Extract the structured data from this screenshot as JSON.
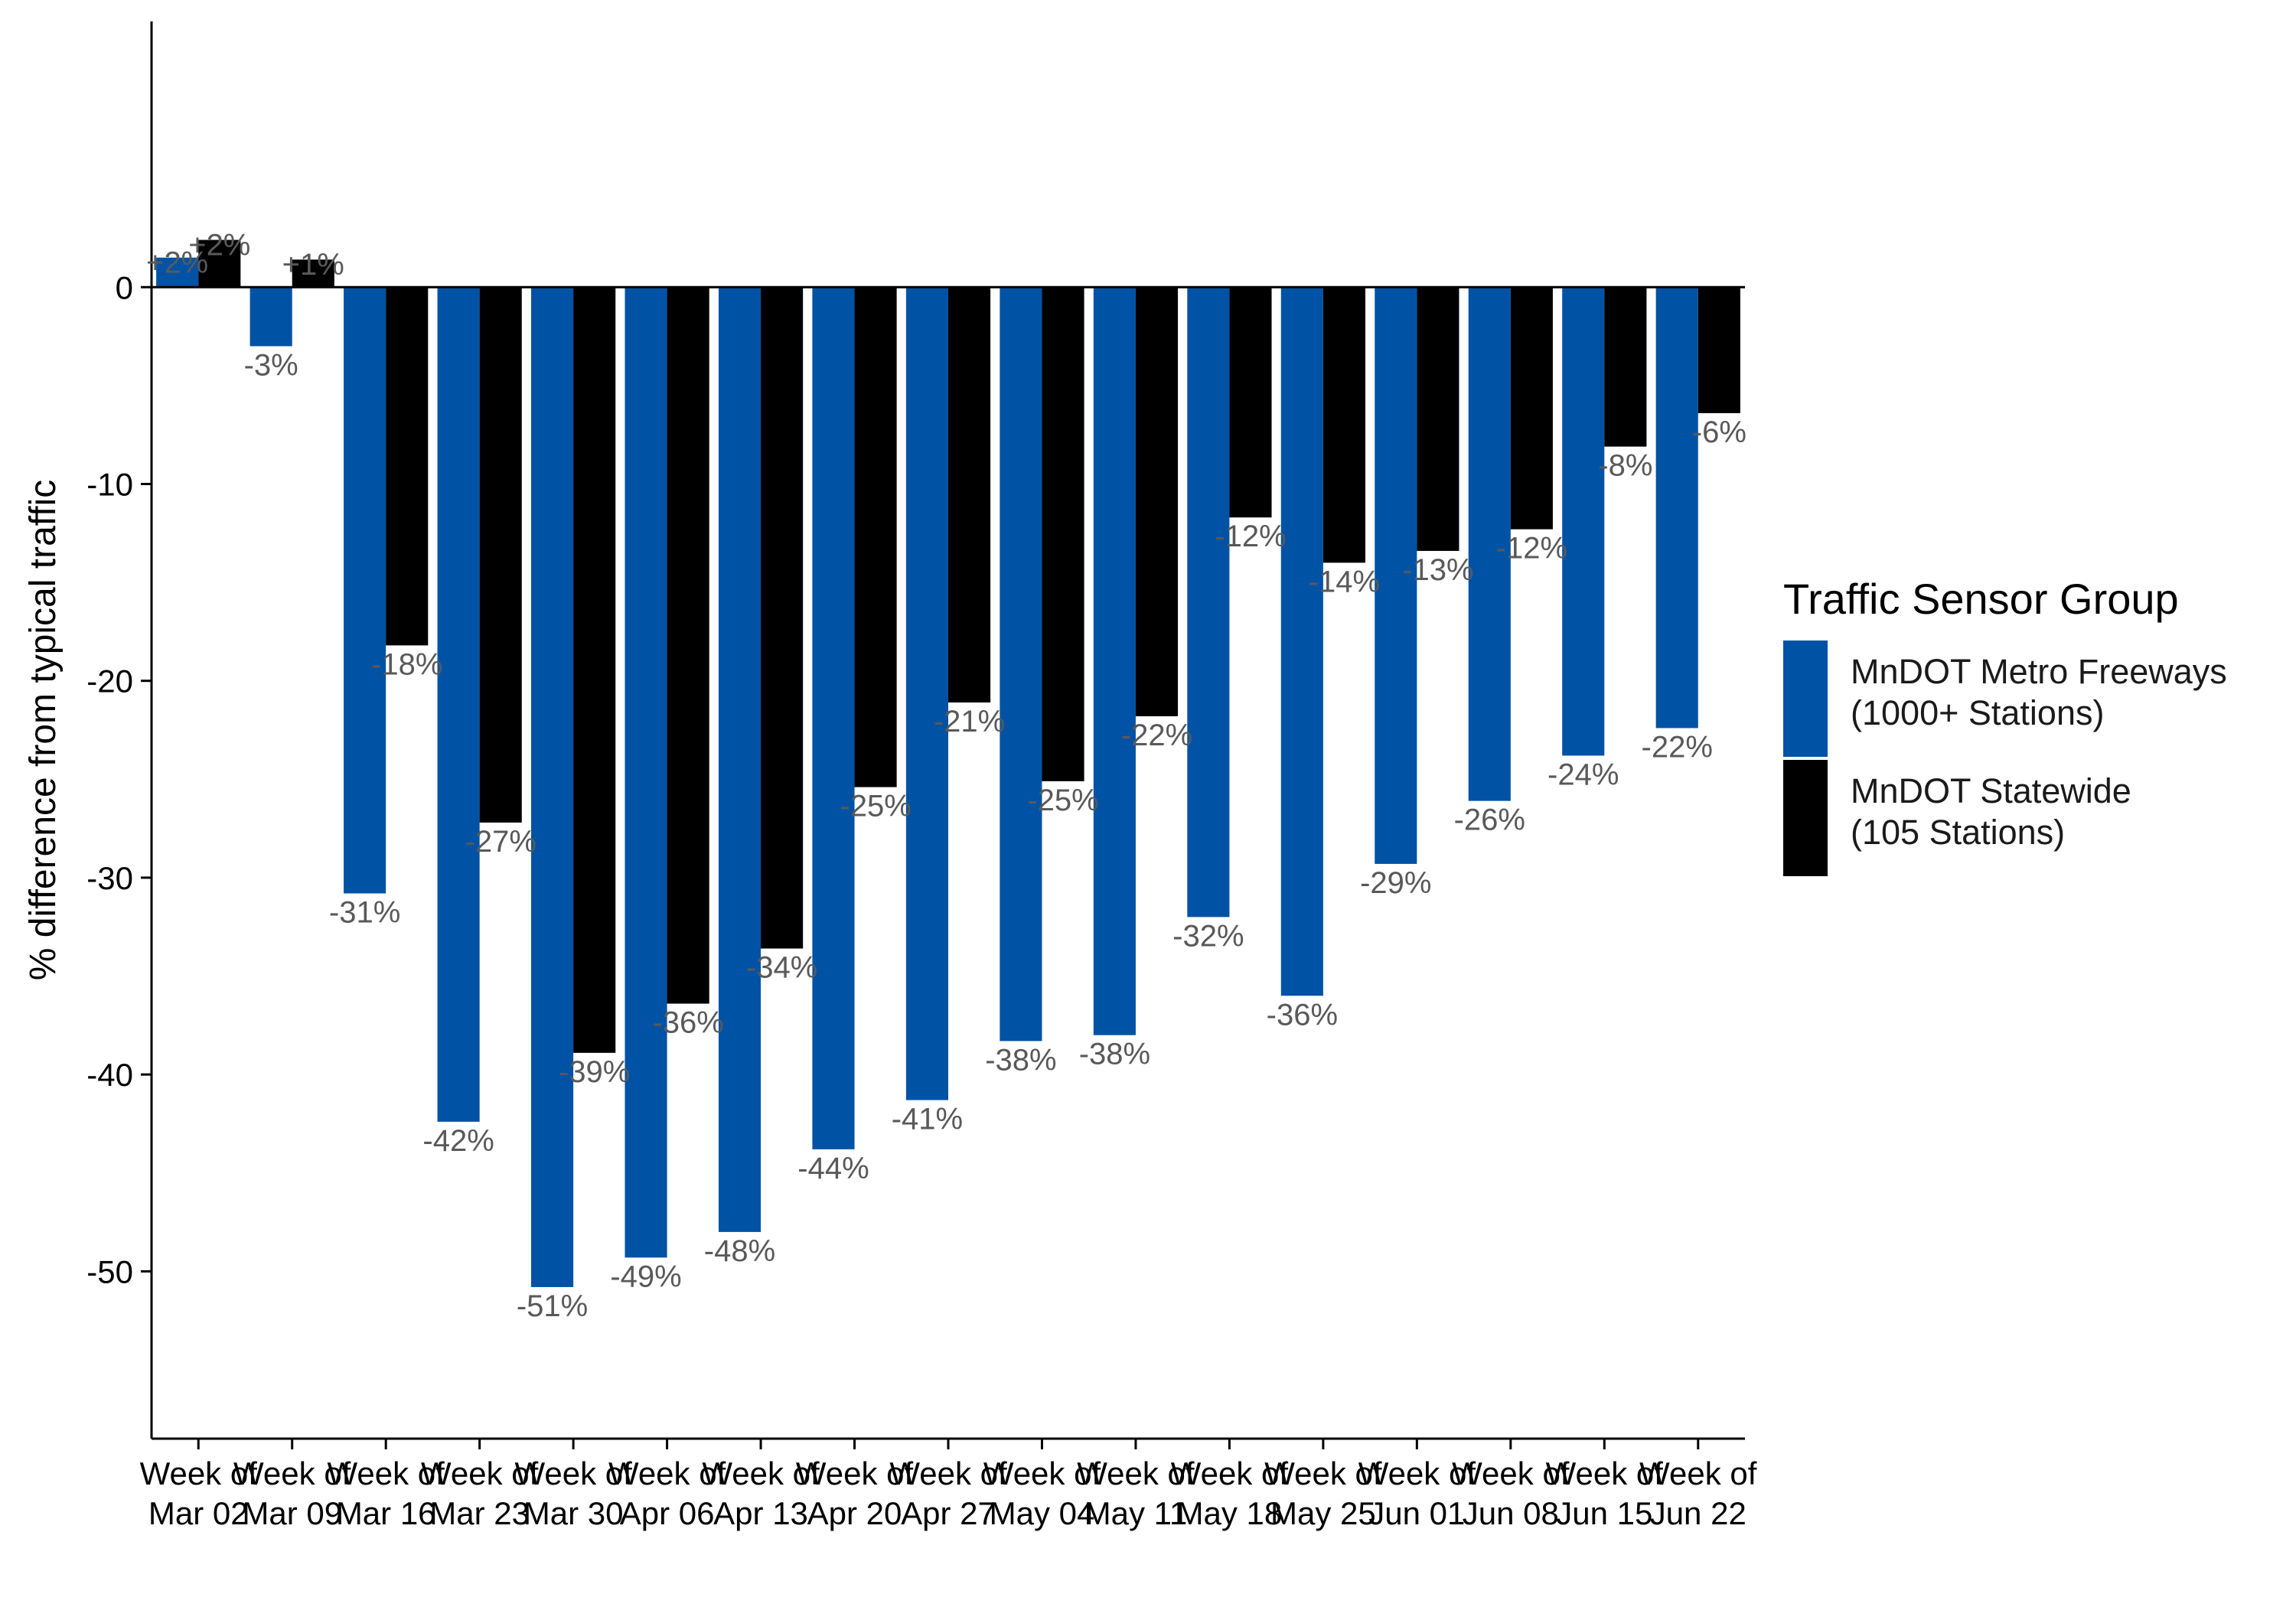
{
  "chart_data": {
    "type": "bar",
    "ylabel": "% difference from typical traffic",
    "xlabel": "",
    "ylim": [
      -58.5,
      13.5
    ],
    "yticks": [
      0,
      -10,
      -20,
      -30,
      -40,
      -50
    ],
    "categories": [
      "Week of\nMar 02",
      "Week of\nMar 09",
      "Week of\nMar 16",
      "Week of\nMar 23",
      "Week of\nMar 30",
      "Week of\nApr 06",
      "Week of\nApr 13",
      "Week of\nApr 20",
      "Week of\nApr 27",
      "Week of\nMay 04",
      "Week of\nMay 11",
      "Week of\nMay 18",
      "Week of\nMay 25",
      "Week of\nJun 01",
      "Week of\nJun 08",
      "Week of\nJun 15",
      "Week of\nJun 22"
    ],
    "series": [
      {
        "name": "MnDOT Metro Freeways\n(1000+ Stations)",
        "color": "#0052A5",
        "values": [
          1.5,
          -3,
          -30.8,
          -42.4,
          -50.8,
          -49.3,
          -48.0,
          -43.8,
          -41.3,
          -38.3,
          -38.0,
          -32.0,
          -36.0,
          -29.3,
          -26.1,
          -23.8,
          -22.4
        ],
        "labels": [
          "+2%",
          "-3%",
          "-31%",
          "-42%",
          "-51%",
          "-49%",
          "-48%",
          "-44%",
          "-41%",
          "-38%",
          "-38%",
          "-32%",
          "-36%",
          "-29%",
          "-26%",
          "-24%",
          "-22%"
        ]
      },
      {
        "name": "MnDOT Statewide\n(105 Stations)",
        "color": "#000000",
        "values": [
          2.4,
          null,
          -18.2,
          -27.2,
          -38.9,
          -36.4,
          -33.6,
          -25.4,
          -21.1,
          -25.1,
          -21.8,
          -11.7,
          -14.0,
          -13.4,
          -12.3,
          -8.1,
          -6.4
        ],
        "labels": [
          "+2%",
          "",
          "-18%",
          "-27%",
          "-39%",
          "-36%",
          "-34%",
          "-25%",
          "-21%",
          "-25%",
          "-22%",
          "-12%",
          "-14%",
          "-13%",
          "-12%",
          "-8%",
          "-6%"
        ]
      }
    ],
    "extra_label": {
      "category_index": 1,
      "text": "+1%",
      "value": 1.4
    },
    "legend": {
      "title": "Traffic Sensor Group",
      "position": "right"
    },
    "grid": false,
    "label_color": "#595959"
  }
}
